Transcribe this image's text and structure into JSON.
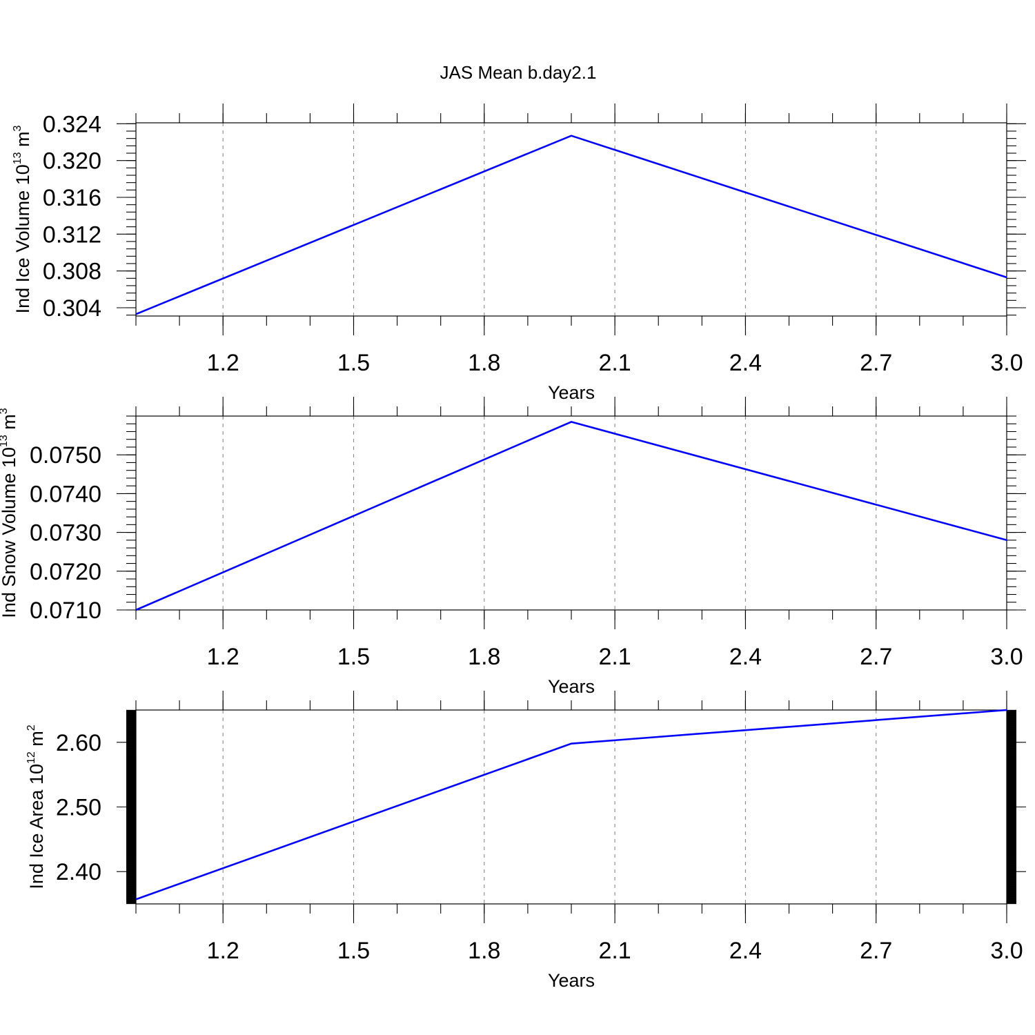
{
  "figure": {
    "title": "JAS Mean b.day2.1"
  },
  "chart_data": [
    {
      "type": "line",
      "xlabel": "Years",
      "ylabel": {
        "base": "Ind Ice Volume 10",
        "exp": "13",
        "unit": " m",
        "unit_exp": "3"
      },
      "xlim": [
        1.0,
        3.0
      ],
      "ylim": [
        0.3031,
        0.3241
      ],
      "x_ticks": [
        "1.2",
        "1.5",
        "1.8",
        "2.1",
        "2.4",
        "2.7",
        "3.0"
      ],
      "y_ticks": [
        "0.304",
        "0.308",
        "0.312",
        "0.316",
        "0.320",
        "0.324"
      ],
      "x": [
        1.0,
        2.0,
        3.0
      ],
      "values": [
        0.3033,
        0.3227,
        0.3073
      ],
      "line_color": "#0000ff",
      "grid": "x dashed"
    },
    {
      "type": "line",
      "xlabel": "Years",
      "ylabel": {
        "base": "Ind Snow Volume 10",
        "exp": "13",
        "unit": " m",
        "unit_exp": "3"
      },
      "xlim": [
        1.0,
        3.0
      ],
      "ylim": [
        0.071,
        0.076
      ],
      "x_ticks": [
        "1.2",
        "1.5",
        "1.8",
        "2.1",
        "2.4",
        "2.7",
        "3.0"
      ],
      "y_ticks": [
        "0.0710",
        "0.0720",
        "0.0730",
        "0.0740",
        "0.0750"
      ],
      "x": [
        1.0,
        2.0,
        3.0
      ],
      "values": [
        0.071,
        0.07585,
        0.0728
      ],
      "line_color": "#0000ff",
      "grid": "x dashed"
    },
    {
      "type": "line",
      "xlabel": "Years",
      "ylabel": {
        "base": "Ind Ice Area 10",
        "exp": "12",
        "unit": " m",
        "unit_exp": "2"
      },
      "xlim": [
        1.0,
        3.0
      ],
      "ylim": [
        2.35,
        2.65
      ],
      "x_ticks": [
        "1.2",
        "1.5",
        "1.8",
        "2.1",
        "2.4",
        "2.7",
        "3.0"
      ],
      "y_ticks": [
        "2.40",
        "2.50",
        "2.60"
      ],
      "x": [
        1.0,
        2.0,
        3.0
      ],
      "values": [
        2.357,
        2.598,
        2.65
      ],
      "line_color": "#0000ff",
      "grid": "x dashed"
    }
  ]
}
